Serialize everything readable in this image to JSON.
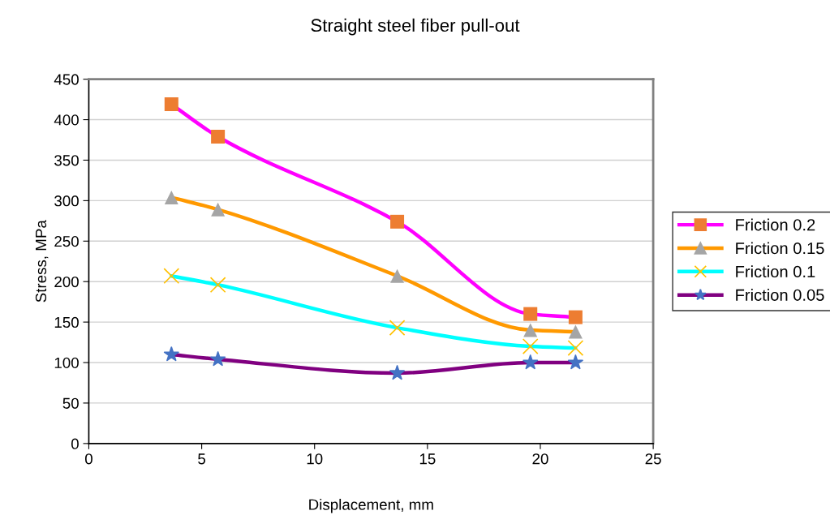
{
  "chart_data": {
    "type": "line",
    "title": "Straight steel fiber pull-out",
    "xlabel": "Displacement, mm",
    "ylabel": "Stress, MPa",
    "x": [
      3.66,
      5.72,
      13.66,
      19.56,
      21.56
    ],
    "series": [
      {
        "name": "Friction 0.2",
        "color": "#ff00ff",
        "marker": "square",
        "colors": [
          "#ed7d31",
          "#ed7d31",
          "#ed7d31",
          "#ed7d31",
          "#ed7d31"
        ],
        "values": [
          419,
          379,
          274,
          160,
          156
        ]
      },
      {
        "name": "Friction 0.15",
        "color": "#ff9900",
        "marker": "triangle",
        "colors": [
          "#a5a5a5",
          "#a5a5a5",
          "#a5a5a5",
          "#a5a5a5",
          "#a5a5a5"
        ],
        "values": [
          304,
          289,
          207,
          140,
          138
        ]
      },
      {
        "name": "Friction 0.1",
        "color": "#00ffff",
        "marker": "cross",
        "colors": [
          "#ffc000",
          "#ffc000",
          "#ffc000",
          "#ffc000",
          "#ffc000"
        ],
        "values": [
          207,
          196,
          143,
          120,
          118
        ]
      },
      {
        "name": "Friction 0.05",
        "color": "#800080",
        "marker": "star",
        "colors": [
          "#4472c4",
          "#4472c4",
          "#4472c4",
          "#4472c4",
          "#4472c4"
        ],
        "values": [
          110,
          104,
          87,
          100,
          100
        ]
      }
    ],
    "xlim": [
      0,
      25
    ],
    "xticks": [
      0,
      5,
      10,
      15,
      20,
      25
    ],
    "ylim": [
      0,
      450
    ],
    "yticks": [
      0,
      50,
      100,
      150,
      200,
      250,
      300,
      350,
      400,
      450
    ],
    "grid": "y",
    "legend": "right"
  }
}
